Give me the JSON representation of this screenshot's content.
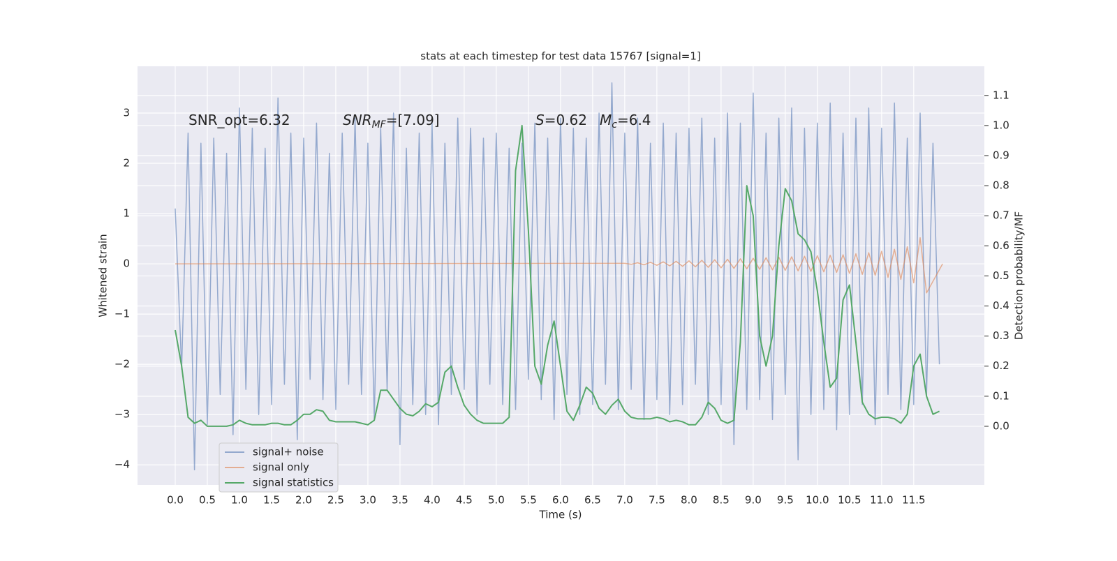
{
  "chart_data": {
    "type": "line",
    "title": "stats at each timestep for test data 15767 [signal=1]",
    "xlabel": "Time (s)",
    "ylabel": "Whitened strain",
    "y2label": "Detection probability/MF",
    "annotations": [
      {
        "main": "SNR_opt=6.32"
      },
      {
        "main": "SNR",
        "sub": "MF",
        "rest": "=[7.09]"
      },
      {
        "main": "S",
        "rest": "=0.62"
      },
      {
        "main": "M",
        "sub": "c",
        "rest": "=6.4"
      }
    ],
    "grid": true,
    "legend": "lower left",
    "xlim": [
      -0.587,
      12.6
    ],
    "ylim": [
      -4.4,
      3.93
    ],
    "y2lim": [
      -0.195,
      1.197
    ],
    "xticks": [
      {
        "value": 0,
        "label": "0.0"
      },
      {
        "value": 0.5,
        "label": "0.5"
      },
      {
        "value": 1,
        "label": "1.0"
      },
      {
        "value": 1.5,
        "label": "1.5"
      },
      {
        "value": 2,
        "label": "2.0"
      },
      {
        "value": 2.5,
        "label": "2.5"
      },
      {
        "value": 3,
        "label": "3.0"
      },
      {
        "value": 3.5,
        "label": "3.5"
      },
      {
        "value": 4,
        "label": "4.0"
      },
      {
        "value": 4.5,
        "label": "4.5"
      },
      {
        "value": 5,
        "label": "5.0"
      },
      {
        "value": 5.5,
        "label": "5.5"
      },
      {
        "value": 6,
        "label": "6.0"
      },
      {
        "value": 6.5,
        "label": "6.5"
      },
      {
        "value": 7,
        "label": "7.0"
      },
      {
        "value": 7.5,
        "label": "7.5"
      },
      {
        "value": 8,
        "label": "8.0"
      },
      {
        "value": 8.5,
        "label": "8.5"
      },
      {
        "value": 9,
        "label": "9.0"
      },
      {
        "value": 9.5,
        "label": "9.5"
      },
      {
        "value": 10,
        "label": "10.0"
      },
      {
        "value": 10.5,
        "label": "10.5"
      },
      {
        "value": 11,
        "label": "11.0"
      },
      {
        "value": 11.5,
        "label": "11.5"
      }
    ],
    "yticks": [
      {
        "value": -4,
        "label": "−4"
      },
      {
        "value": -3,
        "label": "−3"
      },
      {
        "value": -2,
        "label": "−2"
      },
      {
        "value": -1,
        "label": "−1"
      },
      0,
      1,
      2,
      3
    ],
    "y2ticks": [
      {
        "value": 0,
        "label": "0.0"
      },
      {
        "value": 0.1,
        "label": "0.1"
      },
      {
        "value": 0.2,
        "label": "0.2"
      },
      {
        "value": 0.3,
        "label": "0.3"
      },
      {
        "value": 0.4,
        "label": "0.4"
      },
      {
        "value": 0.5,
        "label": "0.5"
      },
      {
        "value": 0.6,
        "label": "0.6"
      },
      {
        "value": 0.7,
        "label": "0.7"
      },
      {
        "value": 0.8,
        "label": "0.8"
      },
      {
        "value": 0.9,
        "label": "0.9"
      },
      {
        "value": 1,
        "label": "1.0"
      },
      {
        "value": 1.1,
        "label": "1.1"
      }
    ],
    "x": [
      0,
      0.1,
      0.2,
      0.3,
      0.4,
      0.5,
      0.6,
      0.7,
      0.8,
      0.9,
      1.0,
      1.1,
      1.2,
      1.3,
      1.4,
      1.5,
      1.6,
      1.7,
      1.8,
      1.9,
      2.0,
      2.1,
      2.2,
      2.3,
      2.4,
      2.5,
      2.6,
      2.7,
      2.8,
      2.9,
      3.0,
      3.1,
      3.2,
      3.3,
      3.4,
      3.5,
      3.6,
      3.7,
      3.8,
      3.9,
      4.0,
      4.1,
      4.2,
      4.3,
      4.4,
      4.5,
      4.6,
      4.7,
      4.8,
      4.9,
      5.0,
      5.1,
      5.2,
      5.3,
      5.4,
      5.5,
      5.6,
      5.7,
      5.8,
      5.9,
      6.0,
      6.1,
      6.2,
      6.3,
      6.4,
      6.5,
      6.6,
      6.7,
      6.8,
      6.9,
      7.0,
      7.1,
      7.2,
      7.3,
      7.4,
      7.5,
      7.6,
      7.7,
      7.8,
      7.9,
      8.0,
      8.1,
      8.2,
      8.3,
      8.4,
      8.5,
      8.6,
      8.7,
      8.8,
      8.9,
      9.0,
      9.1,
      9.2,
      9.3,
      9.4,
      9.5,
      9.6,
      9.7,
      9.8,
      9.9,
      10.0,
      10.1,
      10.2,
      10.3,
      10.4,
      10.5,
      10.6,
      10.7,
      10.8,
      10.9,
      11.0,
      11.1,
      11.2,
      11.3,
      11.4,
      11.5,
      11.6,
      11.7,
      11.8,
      11.9
    ],
    "series": [
      {
        "name": "signal+ noise",
        "color": "#4c72b0",
        "opacity": 0.55,
        "values": [
          1.1,
          -2.1,
          2.6,
          -4.1,
          2.4,
          -3.2,
          2.5,
          -2.6,
          2.2,
          -3.4,
          3.1,
          -2.5,
          2.7,
          -3.0,
          2.3,
          -2.8,
          3.3,
          -2.4,
          2.6,
          -3.5,
          2.5,
          -2.3,
          2.8,
          -2.7,
          2.2,
          -2.9,
          2.6,
          -2.4,
          2.9,
          -2.6,
          2.4,
          -3.1,
          2.7,
          -2.5,
          3.0,
          -3.6,
          2.3,
          -2.8,
          2.6,
          -3.0,
          2.8,
          -3.2,
          2.4,
          -2.6,
          2.9,
          -2.5,
          2.7,
          -3.0,
          2.5,
          -2.4,
          2.6,
          -2.8,
          2.3,
          -2.9,
          2.4,
          -2.3,
          2.8,
          -2.7,
          2.5,
          -3.1,
          2.9,
          -2.6,
          2.7,
          -3.0,
          2.5,
          -2.8,
          3.0,
          -2.4,
          3.6,
          -2.9,
          2.6,
          -2.5,
          2.9,
          -3.1,
          2.4,
          -2.7,
          2.8,
          -3.0,
          2.6,
          -2.8,
          2.7,
          -2.4,
          2.9,
          -3.0,
          2.5,
          -2.8,
          3.0,
          -3.6,
          2.8,
          -2.9,
          3.4,
          -2.7,
          2.6,
          -3.1,
          2.9,
          -2.6,
          3.1,
          -3.9,
          2.7,
          -3.0,
          2.8,
          -2.9,
          3.2,
          -3.3,
          2.6,
          -3.0,
          2.9,
          -2.8,
          3.1,
          -3.2,
          2.7,
          -2.6,
          3.2,
          -2.9,
          2.5,
          -2.8,
          3.0,
          -2.6,
          2.4,
          -2.0
        ]
      },
      {
        "name": "signal only",
        "color": "#dd8452",
        "opacity": 0.6,
        "x": [
          0,
          7.0,
          7.1,
          7.2,
          7.3,
          7.4,
          7.5,
          7.6,
          7.7,
          7.8,
          7.9,
          8.0,
          8.1,
          8.2,
          8.3,
          8.4,
          8.5,
          8.6,
          8.7,
          8.8,
          8.9,
          9.0,
          9.1,
          9.2,
          9.3,
          9.4,
          9.5,
          9.6,
          9.7,
          9.8,
          9.9,
          10.0,
          10.1,
          10.2,
          10.3,
          10.4,
          10.5,
          10.6,
          10.7,
          10.8,
          10.9,
          11.0,
          11.1,
          11.2,
          11.3,
          11.4,
          11.5,
          11.6,
          11.7,
          11.95
        ],
        "values": [
          0,
          0.01,
          -0.01,
          0.02,
          -0.02,
          0.03,
          -0.03,
          0.04,
          -0.04,
          0.05,
          -0.05,
          0.06,
          -0.06,
          0.07,
          -0.07,
          0.08,
          -0.08,
          0.09,
          -0.09,
          0.1,
          -0.1,
          0.11,
          -0.11,
          0.12,
          -0.12,
          0.13,
          -0.13,
          0.14,
          -0.14,
          0.15,
          -0.15,
          0.16,
          -0.16,
          0.17,
          -0.17,
          0.18,
          -0.19,
          0.2,
          -0.21,
          0.22,
          -0.23,
          0.25,
          -0.27,
          0.29,
          -0.31,
          0.34,
          -0.38,
          0.52,
          -0.58,
          0
        ]
      },
      {
        "name": "signal statistics",
        "color": "#55a868",
        "opacity": 1,
        "axis": "y2",
        "values": [
          0.32,
          0.2,
          0.03,
          0.01,
          0.02,
          0.0,
          0.0,
          0.0,
          0.0,
          0.005,
          0.02,
          0.01,
          0.005,
          0.005,
          0.005,
          0.01,
          0.01,
          0.005,
          0.005,
          0.02,
          0.04,
          0.04,
          0.055,
          0.05,
          0.02,
          0.015,
          0.015,
          0.015,
          0.015,
          0.01,
          0.005,
          0.02,
          0.12,
          0.12,
          0.09,
          0.06,
          0.04,
          0.035,
          0.05,
          0.075,
          0.065,
          0.08,
          0.18,
          0.2,
          0.13,
          0.07,
          0.04,
          0.02,
          0.01,
          0.01,
          0.01,
          0.01,
          0.03,
          0.85,
          1.0,
          0.65,
          0.2,
          0.14,
          0.27,
          0.35,
          0.2,
          0.05,
          0.02,
          0.07,
          0.13,
          0.11,
          0.06,
          0.04,
          0.07,
          0.09,
          0.05,
          0.03,
          0.025,
          0.025,
          0.025,
          0.03,
          0.025,
          0.015,
          0.02,
          0.015,
          0.005,
          0.005,
          0.03,
          0.08,
          0.06,
          0.02,
          0.01,
          0.02,
          0.28,
          0.8,
          0.7,
          0.3,
          0.2,
          0.3,
          0.6,
          0.79,
          0.75,
          0.64,
          0.62,
          0.58,
          0.45,
          0.28,
          0.13,
          0.16,
          0.42,
          0.47,
          0.28,
          0.08,
          0.04,
          0.025,
          0.03,
          0.03,
          0.025,
          0.01,
          0.04,
          0.2,
          0.24,
          0.1,
          0.04,
          0.05
        ]
      }
    ]
  }
}
